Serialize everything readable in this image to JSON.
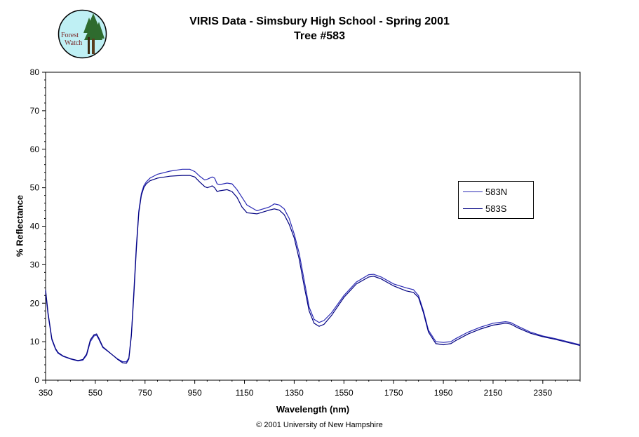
{
  "header": {
    "title_line1": "VIRIS Data - Simsbury High School - Spring 2001",
    "title_line2": "Tree #583",
    "logo_text_1": "Forest",
    "logo_text_2": "Watch"
  },
  "footer": {
    "copyright": "© 2001 University of New Hampshire"
  },
  "colors": {
    "series_583N": "#2a2ab4",
    "series_583S": "#000080",
    "logo_bg": "#bff0f4"
  },
  "chart_data": {
    "type": "line",
    "title": "VIRIS Data - Simsbury High School - Spring 2001",
    "subtitle": "Tree #583",
    "xlabel": "Wavelength (nm)",
    "ylabel": "% Reflectance",
    "xlim": [
      350,
      2500
    ],
    "ylim": [
      0,
      80
    ],
    "xticks": [
      "350",
      "550",
      "750",
      "950",
      "1150",
      "1350",
      "1550",
      "1750",
      "1950",
      "2150",
      "2350"
    ],
    "yticks": [
      "0",
      "10",
      "20",
      "30",
      "40",
      "50",
      "60",
      "70",
      "80"
    ],
    "grid": false,
    "legend_position": "right",
    "series": [
      {
        "name": "583N",
        "x": [
          350,
          360,
          375,
          390,
          400,
          420,
          450,
          480,
          500,
          515,
          530,
          545,
          555,
          565,
          580,
          600,
          620,
          640,
          660,
          675,
          685,
          695,
          705,
          715,
          725,
          735,
          745,
          755,
          770,
          800,
          850,
          900,
          930,
          950,
          970,
          990,
          1000,
          1010,
          1020,
          1030,
          1040,
          1050,
          1080,
          1100,
          1120,
          1140,
          1160,
          1200,
          1250,
          1270,
          1290,
          1310,
          1330,
          1350,
          1370,
          1390,
          1410,
          1430,
          1450,
          1470,
          1500,
          1550,
          1600,
          1650,
          1670,
          1700,
          1750,
          1800,
          1830,
          1850,
          1870,
          1890,
          1920,
          1950,
          1980,
          2000,
          2050,
          2100,
          2150,
          2200,
          2220,
          2250,
          2300,
          2350,
          2400,
          2450,
          2500
        ],
        "y": [
          23.0,
          17.0,
          10.5,
          8.0,
          7.0,
          6.2,
          5.5,
          5.0,
          5.2,
          6.5,
          10.0,
          11.5,
          11.7,
          10.5,
          8.5,
          7.5,
          6.5,
          5.5,
          4.8,
          4.8,
          5.8,
          12.0,
          23.0,
          35.0,
          44.0,
          48.5,
          50.5,
          51.5,
          52.5,
          53.5,
          54.3,
          54.8,
          54.8,
          54.2,
          53.0,
          52.0,
          52.2,
          52.5,
          52.8,
          52.5,
          51.0,
          50.8,
          51.2,
          51.0,
          49.5,
          47.5,
          45.5,
          44.0,
          45.0,
          45.8,
          45.5,
          44.5,
          42.0,
          38.0,
          33.0,
          26.0,
          19.0,
          15.8,
          15.0,
          15.5,
          17.5,
          22.0,
          25.5,
          27.4,
          27.5,
          26.8,
          25.0,
          24.0,
          23.5,
          22.0,
          18.0,
          13.0,
          10.0,
          9.8,
          10.0,
          10.8,
          12.5,
          13.8,
          14.8,
          15.2,
          15.0,
          14.0,
          12.5,
          11.5,
          10.8,
          10.0,
          9.2
        ]
      },
      {
        "name": "583S",
        "x": [
          350,
          360,
          375,
          390,
          400,
          420,
          450,
          480,
          500,
          515,
          530,
          545,
          555,
          565,
          580,
          600,
          620,
          640,
          660,
          675,
          685,
          695,
          705,
          715,
          725,
          735,
          745,
          755,
          770,
          800,
          850,
          900,
          930,
          950,
          970,
          990,
          1000,
          1010,
          1020,
          1030,
          1040,
          1050,
          1080,
          1100,
          1120,
          1140,
          1160,
          1200,
          1250,
          1270,
          1290,
          1310,
          1330,
          1350,
          1370,
          1390,
          1410,
          1430,
          1450,
          1470,
          1500,
          1550,
          1600,
          1650,
          1670,
          1700,
          1750,
          1800,
          1830,
          1850,
          1870,
          1890,
          1920,
          1950,
          1980,
          2000,
          2050,
          2100,
          2150,
          2200,
          2220,
          2250,
          2300,
          2350,
          2400,
          2450,
          2500
        ],
        "y": [
          23.5,
          17.5,
          10.8,
          8.2,
          7.2,
          6.3,
          5.6,
          5.1,
          5.4,
          6.8,
          10.5,
          11.8,
          12.0,
          10.8,
          8.7,
          7.6,
          6.5,
          5.4,
          4.5,
          4.4,
          5.5,
          11.5,
          22.0,
          34.0,
          43.5,
          48.0,
          50.0,
          51.0,
          51.8,
          52.5,
          53.0,
          53.2,
          53.2,
          52.8,
          51.5,
          50.3,
          50.0,
          50.2,
          50.5,
          50.0,
          49.0,
          49.2,
          49.5,
          49.0,
          47.5,
          45.0,
          43.5,
          43.2,
          44.2,
          44.5,
          44.2,
          43.0,
          40.5,
          37.0,
          31.5,
          24.5,
          18.0,
          14.8,
          14.0,
          14.5,
          16.8,
          21.5,
          25.0,
          26.8,
          27.0,
          26.3,
          24.5,
          23.2,
          22.8,
          21.5,
          17.5,
          12.5,
          9.5,
          9.2,
          9.5,
          10.3,
          12.0,
          13.3,
          14.3,
          14.8,
          14.6,
          13.6,
          12.2,
          11.3,
          10.6,
          9.8,
          9.0
        ]
      }
    ]
  }
}
